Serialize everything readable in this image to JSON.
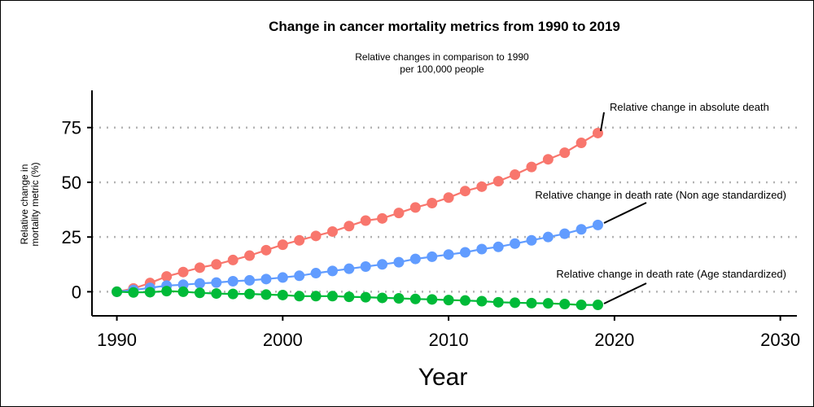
{
  "chart_data": {
    "type": "line",
    "title": "Change in cancer mortality metrics from 1990 to 2019",
    "subtitle": [
      "Relative changes in comparison to 1990",
      "per 100,000 people"
    ],
    "xlabel": "Year",
    "ylabel": [
      "Relative change in",
      "mortality metric (%)"
    ],
    "xlim": [
      1988.5,
      2031
    ],
    "ylim": [
      -11,
      92
    ],
    "xticks": [
      1990,
      2000,
      2010,
      2020,
      2030
    ],
    "yticks": [
      0,
      25,
      50,
      75
    ],
    "grid": "horizontal dotted",
    "legend": "none",
    "x": [
      1990,
      1991,
      1992,
      1993,
      1994,
      1995,
      1996,
      1997,
      1998,
      1999,
      2000,
      2001,
      2002,
      2003,
      2004,
      2005,
      2006,
      2007,
      2008,
      2009,
      2010,
      2011,
      2012,
      2013,
      2014,
      2015,
      2016,
      2017,
      2018,
      2019
    ],
    "series": [
      {
        "color": "#F8766D",
        "values": [
          0,
          1.5,
          4,
          7,
          9,
          11,
          12.5,
          14.5,
          16.5,
          19,
          21.5,
          23.5,
          25.5,
          27.5,
          30,
          32.5,
          33.5,
          36,
          38.5,
          40.5,
          43,
          46,
          48,
          50.5,
          53.5,
          57,
          60.5,
          63.5,
          68,
          72.5
        ],
        "annotation": "Relative change in absolute death"
      },
      {
        "color": "#619CFF",
        "values": [
          0,
          0.8,
          1.8,
          2.8,
          3.2,
          3.8,
          4.2,
          4.8,
          5.2,
          5.8,
          6.5,
          7.3,
          8.5,
          9.5,
          10.5,
          11.5,
          12.5,
          13.5,
          15,
          16,
          17,
          18,
          19.5,
          20.5,
          22,
          23.5,
          25,
          26.5,
          28.5,
          30.5
        ],
        "annotation": "Relative change in death rate (Non age standardized)"
      },
      {
        "color": "#00BA38",
        "values": [
          0,
          -0.3,
          -0.2,
          0.3,
          0,
          -0.5,
          -0.8,
          -1,
          -1,
          -1.3,
          -1.5,
          -2,
          -2,
          -2,
          -2.3,
          -2.5,
          -2.8,
          -3,
          -3.3,
          -3.5,
          -3.8,
          -4,
          -4.3,
          -4.8,
          -5,
          -5.2,
          -5.3,
          -5.6,
          -6,
          -6
        ]
      }
    ],
    "annotations": [
      "Relative change in absolute death",
      "Relative change in death rate (Non age standardized)",
      "Relative change in death rate (Age standardized)"
    ]
  }
}
